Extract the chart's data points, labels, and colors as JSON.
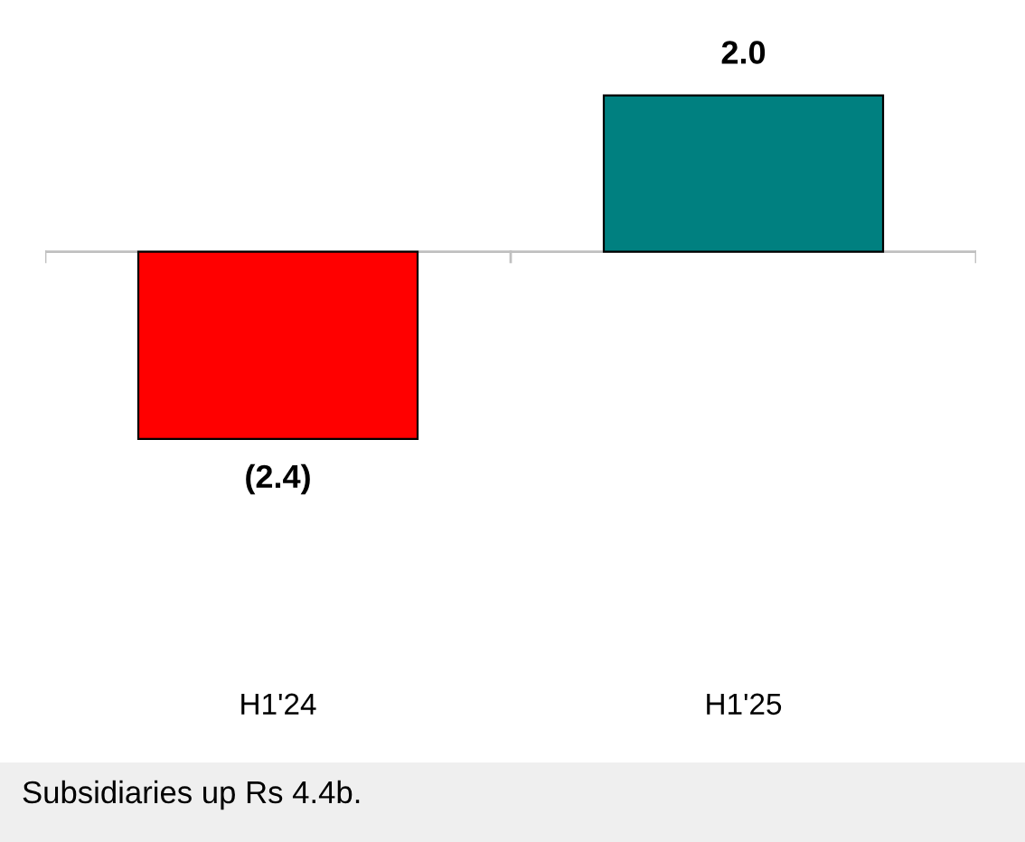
{
  "chart_data": {
    "type": "bar",
    "categories": [
      "H1'24",
      "H1'25"
    ],
    "values": [
      -2.4,
      2.0
    ],
    "colors": [
      "#ff0000",
      "#008080"
    ],
    "value_labels": [
      "(2.4)",
      "2.0"
    ],
    "grid": false,
    "legend": false,
    "annotations": [
      "Subsidiaries up Rs 4.4b."
    ]
  }
}
